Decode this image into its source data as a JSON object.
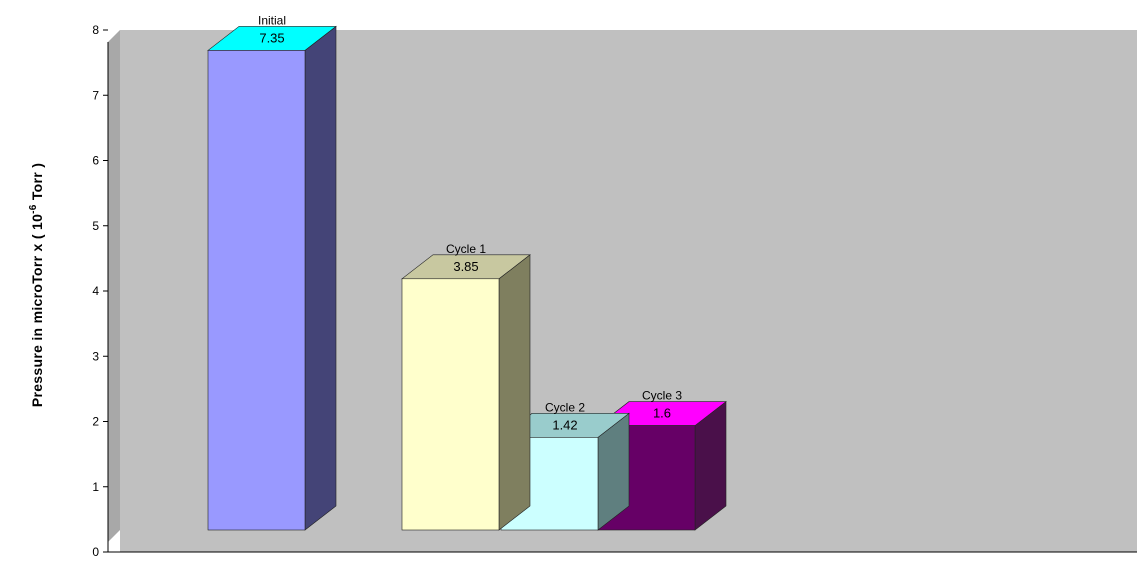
{
  "chart_data": {
    "type": "bar",
    "title": "",
    "xlabel": "",
    "ylabel": "Pressure in microTorr x ( 10-6 Torr )",
    "ylabel_parts": {
      "prefix": "Pressure in microTorr x ( 10",
      "superscript": "-6",
      "suffix": " Torr )"
    },
    "ylim": [
      0,
      8
    ],
    "yticks": [
      "0",
      "1",
      "2",
      "3",
      "4",
      "5",
      "6",
      "7",
      "8"
    ],
    "style": "3d",
    "background_color": "#c0c0c0",
    "grid": false,
    "legend": "none",
    "categories": [
      "Initial",
      "Cycle 1",
      "Cycle 2",
      "Cycle 3"
    ],
    "values": [
      7.35,
      3.85,
      1.42,
      1.6
    ],
    "value_labels": [
      "7.35",
      "3.85",
      "1.42",
      "1.6"
    ],
    "colors": {
      "front": [
        "#9999ff",
        "#ffffcc",
        "#ccffff",
        "#660066"
      ],
      "top": [
        "#00ffff",
        "#c8c8a0",
        "#99cccc",
        "#ff00ff"
      ],
      "side": [
        "#444477",
        "#7f7f5f",
        "#5f7f7f",
        "#4a104a"
      ]
    }
  }
}
